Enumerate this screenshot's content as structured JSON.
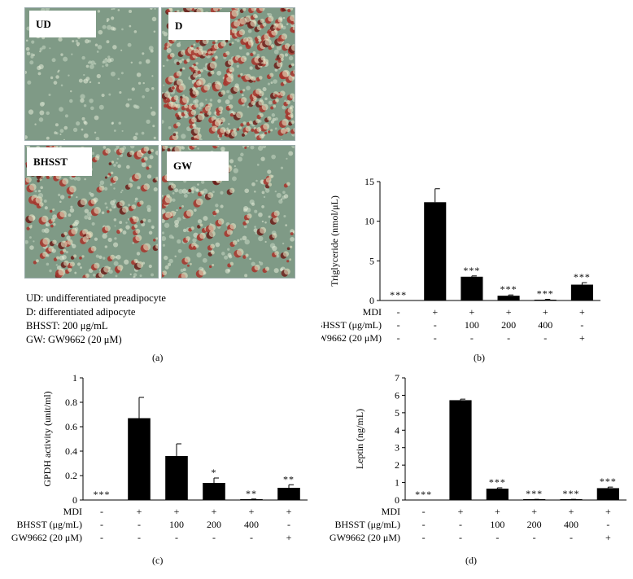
{
  "micrographs": [
    {
      "label": "UD",
      "stain": "none"
    },
    {
      "label": "D",
      "stain": "heavy"
    },
    {
      "label": "BHSST",
      "stain": "medium"
    },
    {
      "label": "GW",
      "stain": "light"
    }
  ],
  "legend_lines": [
    "UD: undifferentiated preadipocyte",
    "D: differentiated adipocyte",
    "BHSST: 200 μg/mL",
    "GW: GW9662 (20 μM)"
  ],
  "panel_labels": [
    "(a)",
    "(b)",
    "(c)",
    "(d)"
  ],
  "treatment_rows": [
    {
      "label": "MDI",
      "values": [
        "-",
        "+",
        "+",
        "+",
        "+",
        "+"
      ]
    },
    {
      "label": "BHSST (μg/mL)",
      "values": [
        "-",
        "-",
        "100",
        "200",
        "400",
        "-"
      ]
    },
    {
      "label": "GW9662 (20 μM)",
      "values": [
        "-",
        "-",
        "-",
        "-",
        "-",
        "+"
      ]
    }
  ],
  "chart_data": [
    {
      "type": "bar",
      "panel": "(b)",
      "ylabel": "Triglyceride (nmol/μL)",
      "ylim": [
        0,
        15
      ],
      "yticks": [
        0,
        5,
        10,
        15
      ],
      "values": [
        0,
        12.4,
        3.0,
        0.6,
        0.1,
        2.0
      ],
      "errors": [
        0,
        1.7,
        0.1,
        0.1,
        0.05,
        0.25
      ],
      "significance": [
        "***",
        "",
        "***",
        "***",
        "***",
        "***"
      ],
      "bar_color": "#000000"
    },
    {
      "type": "bar",
      "panel": "(c)",
      "ylabel": "GPDH activity (unit/ml)",
      "ylim": [
        0,
        1
      ],
      "yticks": [
        0,
        0.2,
        0.4,
        0.6,
        0.8,
        1
      ],
      "values": [
        0,
        0.67,
        0.36,
        0.14,
        0.005,
        0.1
      ],
      "errors": [
        0,
        0.17,
        0.1,
        0.04,
        0.003,
        0.025
      ],
      "significance": [
        "***",
        "",
        "",
        "*",
        "**",
        "**"
      ],
      "bar_color": "#000000"
    },
    {
      "type": "bar",
      "panel": "(d)",
      "ylabel": "Leptin (ng/mL)",
      "ylim": [
        0,
        7
      ],
      "yticks": [
        0,
        1,
        2,
        3,
        4,
        5,
        6,
        7
      ],
      "values": [
        0,
        5.72,
        0.65,
        0.03,
        0.03,
        0.68
      ],
      "errors": [
        0,
        0.06,
        0.05,
        0.01,
        0.01,
        0.06
      ],
      "significance": [
        "***",
        "",
        "***",
        "***",
        "***",
        "***"
      ],
      "bar_color": "#000000"
    }
  ]
}
